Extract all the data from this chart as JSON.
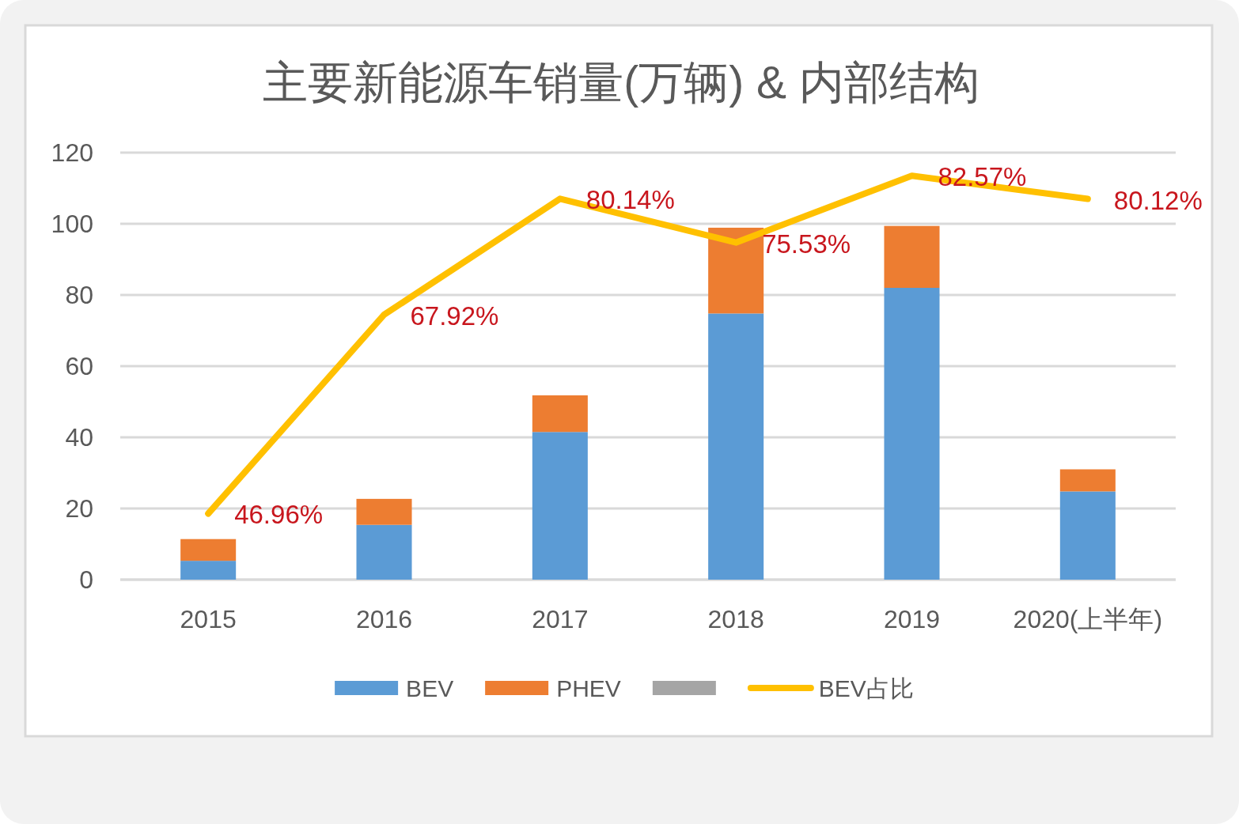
{
  "chart_data": {
    "type": "bar",
    "title": "主要新能源车销量(万辆) & 内部结构",
    "categories": [
      "2015",
      "2016",
      "2017",
      "2018",
      "2019",
      "2020(上半年)"
    ],
    "stacked": true,
    "ylim": [
      0,
      120
    ],
    "yticks": [
      0,
      20,
      40,
      60,
      80,
      100,
      120
    ],
    "y2lim": [
      40,
      85
    ],
    "grid": "y",
    "legend": "bottom",
    "series": [
      {
        "name": "BEV",
        "color": "#5b9bd5",
        "values": [
          5.3,
          15.4,
          41.5,
          74.8,
          82.0,
          24.8
        ]
      },
      {
        "name": "PHEV",
        "color": "#ed7d31",
        "values": [
          6.1,
          7.3,
          10.3,
          24.1,
          17.4,
          6.2
        ]
      },
      {
        "color": "#a5a5a5",
        "values": [
          null,
          null,
          null,
          null,
          null,
          null
        ]
      },
      {
        "name": "BEV占比",
        "type": "line",
        "axis": "y2",
        "color": "#ffc000",
        "values": [
          46.96,
          67.92,
          80.14,
          75.53,
          82.57,
          80.12
        ],
        "value_labels": [
          "46.96%",
          "67.92%",
          "80.14%",
          "75.53%",
          "82.57%",
          "80.12%"
        ]
      }
    ]
  }
}
